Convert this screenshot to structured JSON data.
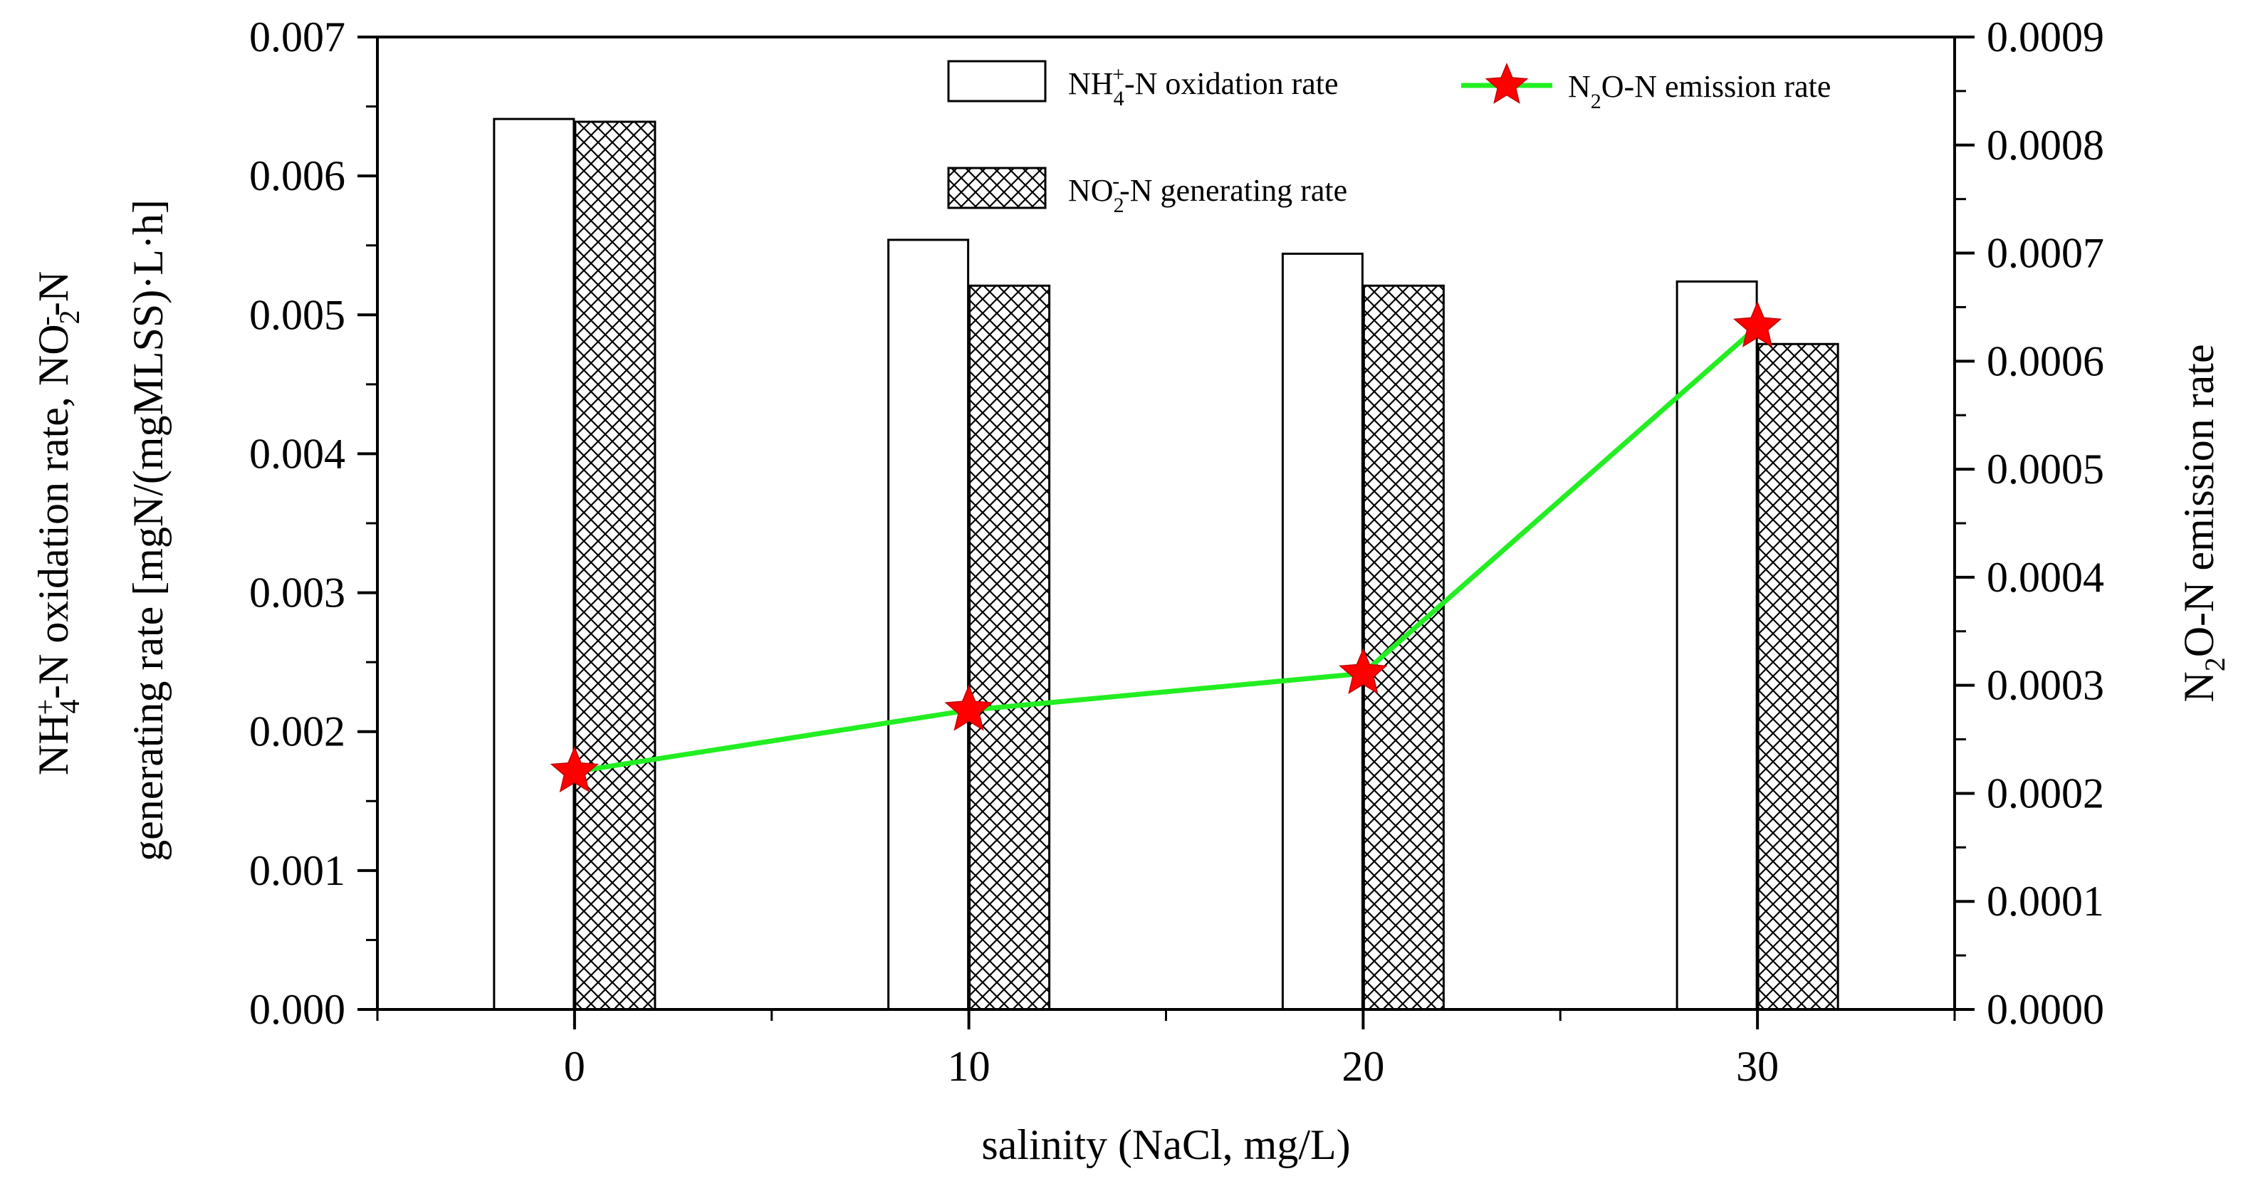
{
  "chart_data": {
    "type": "bar+line",
    "categories": [
      "0",
      "10",
      "20",
      "30"
    ],
    "x": [
      0,
      10,
      20,
      30
    ],
    "xlim": [
      -5,
      35
    ],
    "xlabel": "salinity (NaCl, mg/L)",
    "x_ticks": [
      "0",
      "10",
      "20",
      "30"
    ],
    "left_axis": {
      "ylim": [
        0,
        0.007
      ],
      "ticks": [
        "0.000",
        "0.001",
        "0.002",
        "0.003",
        "0.004",
        "0.005",
        "0.006",
        "0.007"
      ],
      "label_line1": {
        "parts": [
          {
            "t": "NH",
            "s": "n"
          },
          {
            "t": "4",
            "s": "sub"
          },
          {
            "t": "+",
            "s": "sup"
          },
          {
            "t": "-N oxidation rate, NO",
            "s": "n"
          },
          {
            "t": "2",
            "s": "sub"
          },
          {
            "t": "-",
            "s": "sup"
          },
          {
            "t": "-N",
            "s": "n"
          }
        ]
      },
      "label_line2": "generating rate [mgN/(mgMLSS)·L·h]"
    },
    "right_axis": {
      "ylim": [
        0,
        0.0009
      ],
      "ticks": [
        "0.0000",
        "0.0001",
        "0.0002",
        "0.0003",
        "0.0004",
        "0.0005",
        "0.0006",
        "0.0007",
        "0.0008",
        "0.0009"
      ],
      "label": {
        "parts": [
          {
            "t": "N",
            "s": "n"
          },
          {
            "t": "2",
            "s": "sub"
          },
          {
            "t": "O-N  emission rate",
            "s": "n"
          }
        ]
      }
    },
    "series": [
      {
        "name": "NH4+-N oxidation rate",
        "kind": "bar",
        "axis": "left",
        "fill": "#ffffff",
        "values": [
          0.00641,
          0.00554,
          0.00544,
          0.00524
        ],
        "legend": {
          "parts": [
            {
              "t": "NH",
              "s": "n"
            },
            {
              "t": "4",
              "s": "sub"
            },
            {
              "t": "+",
              "s": "sup"
            },
            {
              "t": "-N oxidation rate",
              "s": "n"
            }
          ]
        }
      },
      {
        "name": "NO2--N generating rate",
        "kind": "bar",
        "axis": "left",
        "fill": "crosshatch",
        "values": [
          0.00639,
          0.00521,
          0.00521,
          0.00479
        ],
        "legend": {
          "parts": [
            {
              "t": "NO",
              "s": "n"
            },
            {
              "t": "2",
              "s": "sub"
            },
            {
              "t": "-",
              "s": "sup"
            },
            {
              "t": "-N generating rate",
              "s": "n"
            }
          ]
        }
      },
      {
        "name": "N2O-N emission rate",
        "kind": "line",
        "axis": "right",
        "line_color": "#22ee22",
        "marker": "star",
        "marker_color": "#ff0000",
        "values": [
          0.00022,
          0.000277,
          0.000311,
          0.000632
        ],
        "legend": {
          "parts": [
            {
              "t": "N",
              "s": "n"
            },
            {
              "t": "2",
              "s": "sub"
            },
            {
              "t": "O-N  emission rate",
              "s": "n"
            }
          ]
        }
      }
    ],
    "legend_position": "top-right",
    "grid": false
  }
}
